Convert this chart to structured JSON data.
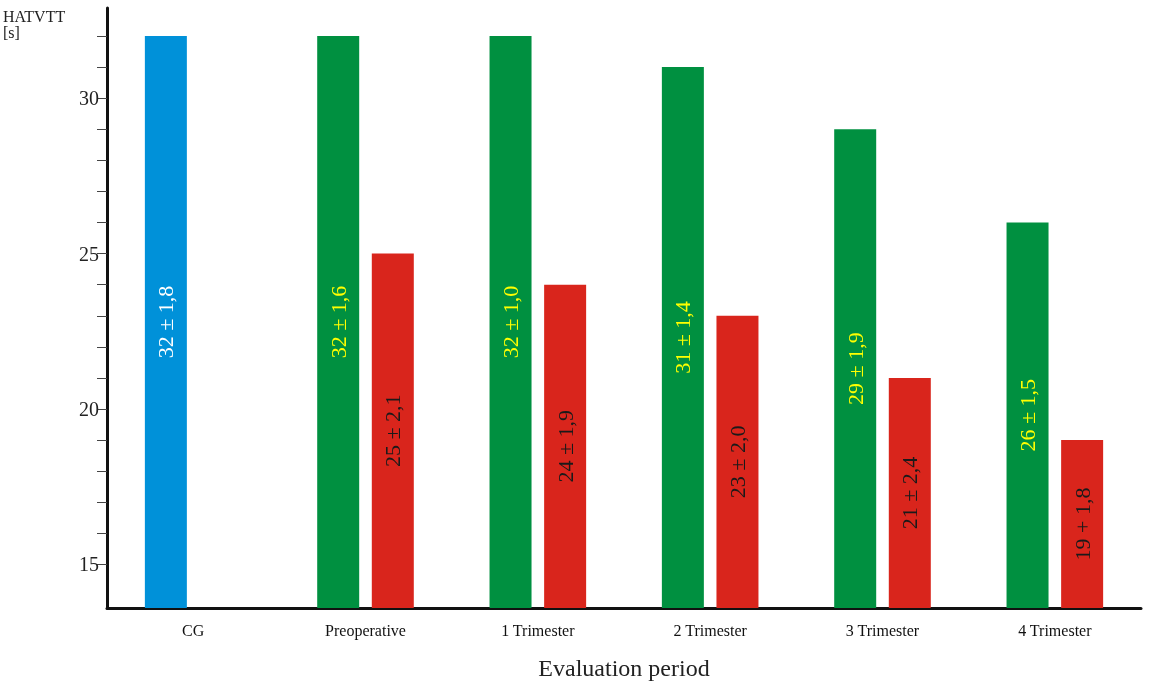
{
  "chart_data": {
    "type": "bar",
    "xlabel": "Evaluation period",
    "ylabel": "HATVTT\n[s]",
    "categories": [
      "CG",
      "Preoperative",
      "1 Trimester",
      "2 Trimester",
      "3 Trimester",
      "4 Trimester"
    ],
    "series": [
      {
        "colors": [
          "#0091d9",
          "#009040",
          "#009040",
          "#009040",
          "#009040",
          "#009040"
        ],
        "values": [
          32,
          32,
          32,
          31,
          29,
          26
        ],
        "value_labels": [
          "32 ± 1,8",
          "32 ± 1,6",
          "32 ± 1,0",
          "31 ± 1,4",
          "29 ± 1,9",
          "26 ± 1,5"
        ]
      },
      {
        "color": "#d9251c",
        "values": [
          null,
          25,
          24,
          23,
          21,
          19
        ],
        "value_labels": [
          null,
          "25 ± 2,1",
          "24 ± 1,9",
          "23 ± 2,0",
          "21 ± 2,4",
          "19 + 1,8"
        ]
      }
    ],
    "ylim": [
      13.6,
      32.9
    ],
    "yticks": [
      15,
      {
        "value": 16,
        "label": null
      },
      {
        "value": 17,
        "label": null
      },
      {
        "value": 18,
        "label": null
      },
      {
        "value": 19,
        "label": null
      },
      20,
      {
        "value": 21,
        "label": null
      },
      {
        "value": 22,
        "label": null
      },
      {
        "value": 23,
        "label": null
      },
      {
        "value": 24,
        "label": null
      },
      25,
      {
        "value": 26,
        "label": null
      },
      {
        "value": 27,
        "label": null
      },
      {
        "value": 28,
        "label": null
      },
      {
        "value": 29,
        "label": null
      },
      30,
      {
        "value": 31,
        "label": null
      },
      {
        "value": 32,
        "label": null
      }
    ],
    "grid": false
  }
}
